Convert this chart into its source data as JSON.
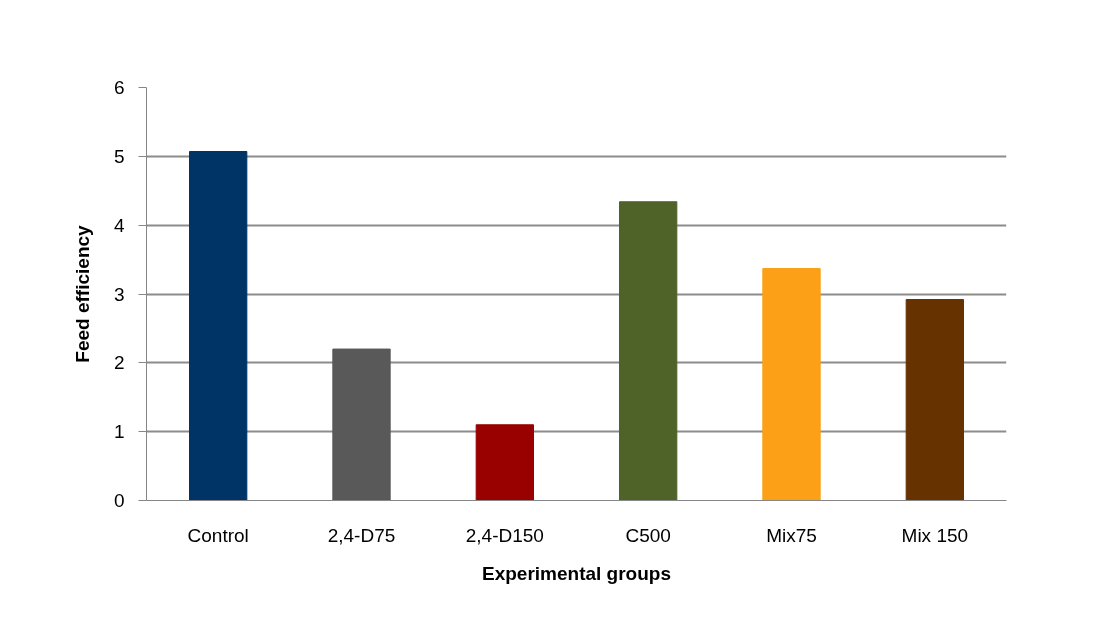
{
  "chart_data": {
    "type": "bar",
    "xlabel": "Experimental groups",
    "ylabel": "Feed efficiency",
    "categories": [
      "Control",
      "2,4-D75",
      "2,4-D150",
      "C500",
      "Mix75",
      "Mix 150"
    ],
    "values": [
      5.07,
      2.2,
      1.1,
      4.34,
      3.37,
      2.92
    ],
    "colors": [
      "#003366",
      "#595959",
      "#990000",
      "#4f6228",
      "#fba017",
      "#663300"
    ],
    "ylim": [
      0,
      6
    ],
    "yticks": [
      0,
      1,
      2,
      3,
      4,
      5,
      6
    ],
    "grid": "y"
  }
}
